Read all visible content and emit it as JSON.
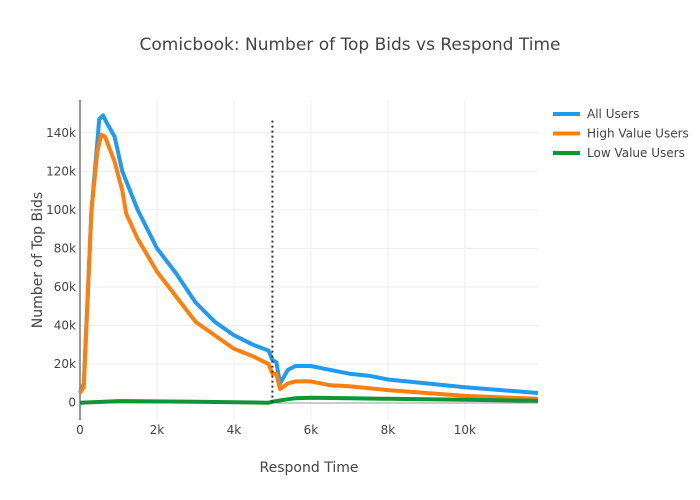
{
  "chart_data": {
    "type": "line",
    "title": "Comicbook: Number of Top Bids vs Respond Time",
    "xlabel": "Respond Time",
    "ylabel": "Number of Top Bids",
    "xlim": [
      0,
      11900
    ],
    "ylim": [
      -9000,
      157000
    ],
    "xticks": [
      0,
      2000,
      4000,
      6000,
      8000,
      10000
    ],
    "xtick_labels": [
      "0",
      "2k",
      "4k",
      "6k",
      "8k",
      "10k"
    ],
    "yticks": [
      0,
      20000,
      40000,
      60000,
      80000,
      100000,
      120000,
      140000
    ],
    "ytick_labels": [
      "0",
      "20k",
      "40k",
      "60k",
      "80k",
      "100k",
      "120k",
      "140k"
    ],
    "grid": true,
    "legend_position": "top-right",
    "vline": {
      "x": 5000,
      "y_top": 147000,
      "style": "dotted"
    },
    "series": [
      {
        "name": "All Users",
        "color": "#1f9bf0",
        "x": [
          0,
          100,
          300,
          450,
          500,
          600,
          700,
          900,
          1100,
          1300,
          1500,
          1800,
          2000,
          2500,
          3000,
          3500,
          4000,
          4500,
          4900,
          5000,
          5100,
          5200,
          5400,
          5600,
          6000,
          6500,
          7000,
          7500,
          8000,
          9000,
          10000,
          11900
        ],
        "y": [
          5000,
          10000,
          100000,
          135000,
          147000,
          149000,
          145000,
          138000,
          120000,
          110000,
          100000,
          88000,
          80000,
          67000,
          52000,
          42000,
          35000,
          30000,
          27000,
          22000,
          21000,
          10000,
          17000,
          19000,
          19000,
          17000,
          15000,
          14000,
          12000,
          10000,
          8000,
          5000
        ]
      },
      {
        "name": "High Value Users",
        "color": "#ff7f0e",
        "x": [
          0,
          100,
          300,
          450,
          550,
          650,
          900,
          1100,
          1200,
          1500,
          2000,
          2500,
          3000,
          3500,
          4000,
          4500,
          4900,
          5000,
          5100,
          5200,
          5400,
          5600,
          6000,
          6500,
          7000,
          8000,
          9000,
          10000,
          11900
        ],
        "y": [
          5000,
          8000,
          100000,
          130000,
          139000,
          138000,
          125000,
          110000,
          98000,
          85000,
          68000,
          55000,
          42000,
          35000,
          28000,
          24000,
          20000,
          15000,
          15000,
          7000,
          10000,
          11000,
          11000,
          9000,
          8500,
          6500,
          5000,
          3500,
          2000
        ]
      },
      {
        "name": "Low Value Users",
        "color": "#0e9636",
        "x": [
          0,
          1000,
          3000,
          4900,
          5000,
          5300,
          5600,
          6000,
          7000,
          8000,
          10000,
          11900
        ],
        "y": [
          0,
          800,
          500,
          0,
          500,
          1500,
          2300,
          2500,
          2300,
          2000,
          1500,
          1000
        ]
      }
    ]
  }
}
